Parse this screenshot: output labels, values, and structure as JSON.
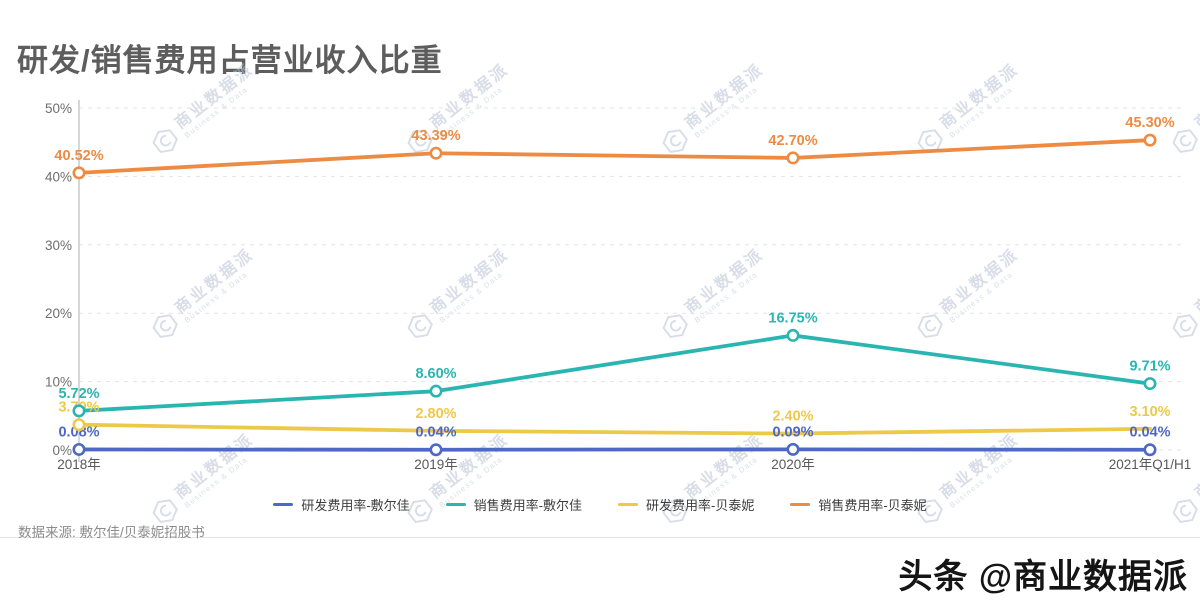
{
  "title": "研发/销售费用占营业收入比重",
  "watermark": {
    "logo_icon": "hexagon-c-logo",
    "text": "商业数据派",
    "subtext": "Business & Data"
  },
  "footer": {
    "source": "数据来源: 敷尔佳/贝泰妮招股书",
    "brand": "头条 @商业数据派"
  },
  "chart_data": {
    "type": "line",
    "title": "研发/销售费用占营业收入比重",
    "categories": [
      "2018年",
      "2019年",
      "2020年",
      "2021年Q1/H1"
    ],
    "series": [
      {
        "name": "研发费用率-敷尔佳",
        "color": "#4D68C5",
        "values": [
          0.08,
          0.04,
          0.09,
          0.04
        ],
        "labels": [
          "0.08%",
          "0.04%",
          "0.09%",
          "0.04%"
        ],
        "markers": [
          true,
          true,
          true,
          true
        ]
      },
      {
        "name": "销售费用率-敷尔佳",
        "color": "#2BB5B0",
        "values": [
          5.72,
          8.6,
          16.75,
          9.71
        ],
        "labels": [
          "5.72%",
          "8.60%",
          "16.75%",
          "9.71%"
        ],
        "markers": [
          true,
          true,
          true,
          true
        ]
      },
      {
        "name": "研发费用率-贝泰妮",
        "color": "#EDC94A",
        "values": [
          3.7,
          2.8,
          2.4,
          3.1
        ],
        "labels": [
          "3.70%",
          "2.80%",
          "2.40%",
          "3.10%"
        ],
        "markers": [
          true,
          false,
          false,
          false
        ]
      },
      {
        "name": "销售费用率-贝泰妮",
        "color": "#ED8B43",
        "values": [
          40.52,
          43.39,
          42.7,
          45.3
        ],
        "labels": [
          "40.52%",
          "43.39%",
          "42.70%",
          "45.30%"
        ],
        "markers": [
          true,
          true,
          true,
          true
        ]
      }
    ],
    "xlabel": "",
    "ylabel": "",
    "ylim": [
      0,
      50
    ],
    "yticks": [
      0,
      10,
      20,
      30,
      40,
      50
    ],
    "ytick_labels": [
      "0%",
      "10%",
      "20%",
      "30%",
      "40%",
      "50%"
    ],
    "grid": "horizontal-dashed",
    "legend_position": "bottom"
  }
}
